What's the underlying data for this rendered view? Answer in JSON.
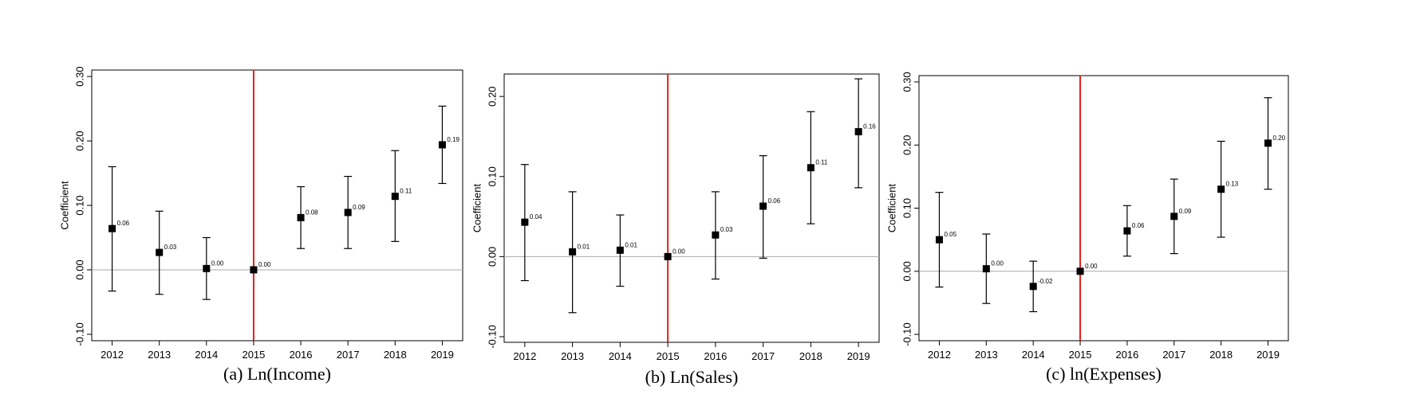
{
  "colors": {
    "event_line": "#e0201b",
    "zero_line": "#a8a8a8",
    "marker": "#000000",
    "frame": "#000000"
  },
  "chart_data": [
    {
      "type": "scatter",
      "caption": "(a) Ln(Income)",
      "ylabel": "Coefficient",
      "categories": [
        "2012",
        "2013",
        "2014",
        "2015",
        "2016",
        "2017",
        "2018",
        "2019"
      ],
      "ylim": [
        -0.11,
        0.31
      ],
      "yticks": [
        -0.1,
        0.0,
        0.1,
        0.2,
        0.3
      ],
      "ytick_labels": [
        "-0.10",
        "0.00",
        "0.10",
        "0.20",
        "0.30"
      ],
      "event_category": "2015",
      "points": [
        {
          "x": "2012",
          "y": 0.064,
          "lo": -0.033,
          "hi": 0.16,
          "label": "0.06"
        },
        {
          "x": "2013",
          "y": 0.027,
          "lo": -0.038,
          "hi": 0.091,
          "label": "0.03"
        },
        {
          "x": "2014",
          "y": 0.002,
          "lo": -0.046,
          "hi": 0.05,
          "label": "0.00"
        },
        {
          "x": "2015",
          "y": 0.0,
          "lo": null,
          "hi": null,
          "label": "0.00"
        },
        {
          "x": "2016",
          "y": 0.081,
          "lo": 0.033,
          "hi": 0.129,
          "label": "0.08"
        },
        {
          "x": "2017",
          "y": 0.089,
          "lo": 0.033,
          "hi": 0.145,
          "label": "0.09"
        },
        {
          "x": "2018",
          "y": 0.114,
          "lo": 0.044,
          "hi": 0.185,
          "label": "0.11"
        },
        {
          "x": "2019",
          "y": 0.194,
          "lo": 0.134,
          "hi": 0.254,
          "label": "0.19"
        }
      ]
    },
    {
      "type": "scatter",
      "caption": "(b) Ln(Sales)",
      "ylabel": "Coefficient",
      "categories": [
        "2012",
        "2013",
        "2014",
        "2015",
        "2016",
        "2017",
        "2018",
        "2019"
      ],
      "ylim": [
        -0.107,
        0.228
      ],
      "yticks": [
        -0.1,
        0.0,
        0.1,
        0.2
      ],
      "ytick_labels": [
        "-0.10",
        "0.00",
        "0.10",
        "0.20"
      ],
      "event_category": "2015",
      "points": [
        {
          "x": "2012",
          "y": 0.043,
          "lo": -0.03,
          "hi": 0.115,
          "label": "0.04"
        },
        {
          "x": "2013",
          "y": 0.006,
          "lo": -0.07,
          "hi": 0.081,
          "label": "0.01"
        },
        {
          "x": "2014",
          "y": 0.008,
          "lo": -0.037,
          "hi": 0.052,
          "label": "0.01"
        },
        {
          "x": "2015",
          "y": 0.0,
          "lo": null,
          "hi": null,
          "label": "0.00"
        },
        {
          "x": "2016",
          "y": 0.027,
          "lo": -0.028,
          "hi": 0.081,
          "label": "0.03"
        },
        {
          "x": "2017",
          "y": 0.063,
          "lo": -0.002,
          "hi": 0.126,
          "label": "0.06"
        },
        {
          "x": "2018",
          "y": 0.111,
          "lo": 0.041,
          "hi": 0.181,
          "label": "0.11"
        },
        {
          "x": "2019",
          "y": 0.156,
          "lo": 0.086,
          "hi": 0.222,
          "label": "0.16"
        }
      ]
    },
    {
      "type": "scatter",
      "caption": "(c) ln(Expenses)",
      "ylabel": "Coefficient",
      "categories": [
        "2012",
        "2013",
        "2014",
        "2015",
        "2016",
        "2017",
        "2018",
        "2019"
      ],
      "ylim": [
        -0.11,
        0.31
      ],
      "yticks": [
        -0.1,
        0.0,
        0.1,
        0.2,
        0.3
      ],
      "ytick_labels": [
        "-0.10",
        "0.00",
        "0.10",
        "0.20",
        "0.30"
      ],
      "event_category": "2015",
      "points": [
        {
          "x": "2012",
          "y": 0.05,
          "lo": -0.025,
          "hi": 0.125,
          "label": "0.05"
        },
        {
          "x": "2013",
          "y": 0.004,
          "lo": -0.051,
          "hi": 0.059,
          "label": "0.00"
        },
        {
          "x": "2014",
          "y": -0.024,
          "lo": -0.064,
          "hi": 0.016,
          "label": "-0.02"
        },
        {
          "x": "2015",
          "y": 0.0,
          "lo": null,
          "hi": null,
          "label": "0.00"
        },
        {
          "x": "2016",
          "y": 0.064,
          "lo": 0.024,
          "hi": 0.104,
          "label": "0.06"
        },
        {
          "x": "2017",
          "y": 0.087,
          "lo": 0.028,
          "hi": 0.146,
          "label": "0.09"
        },
        {
          "x": "2018",
          "y": 0.13,
          "lo": 0.054,
          "hi": 0.206,
          "label": "0.13"
        },
        {
          "x": "2019",
          "y": 0.203,
          "lo": 0.13,
          "hi": 0.275,
          "label": "0.20"
        }
      ]
    }
  ]
}
